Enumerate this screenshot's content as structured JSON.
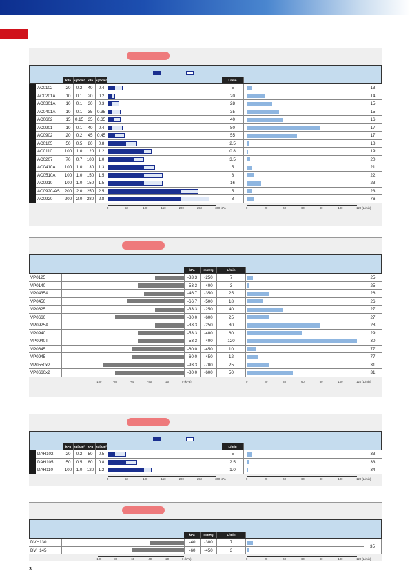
{
  "sections": [
    {
      "id": "ac",
      "headers": [
        "kPa",
        "kgf/cm²",
        "kPa",
        "kgf/cm²",
        "L/min"
      ],
      "pressure_axis": [
        "0",
        "50",
        "100",
        "150",
        "200",
        "250",
        "300 kPa"
      ],
      "flow_axis": [
        "0",
        "20",
        "40",
        "60",
        "80",
        "100",
        "120 (L/min)"
      ],
      "rows": [
        {
          "name": "AC0102",
          "p1": "20",
          "k1": "0.2",
          "p2": "40",
          "k2": "0.4",
          "pv1": 20,
          "pv2": 40,
          "flow": "5",
          "fv": 5,
          "page": "13"
        },
        {
          "name": "AC0201A",
          "p1": "10",
          "k1": "0.1",
          "p2": "20",
          "k2": "0.2",
          "pv1": 10,
          "pv2": 20,
          "flow": "20",
          "fv": 20,
          "page": "14"
        },
        {
          "name": "AC0301A",
          "p1": "10",
          "k1": "0.1",
          "p2": "30",
          "k2": "0.3",
          "pv1": 10,
          "pv2": 30,
          "flow": "28",
          "fv": 28,
          "page": "15"
        },
        {
          "name": "AC0401A",
          "p1": "10",
          "k1": "0.1",
          "p2": "35",
          "k2": "0.35",
          "pv1": 10,
          "pv2": 35,
          "flow": "35",
          "fv": 35,
          "page": "15"
        },
        {
          "name": "AC0602",
          "p1": "15",
          "k1": "0.15",
          "p2": "35",
          "k2": "0.35",
          "pv1": 15,
          "pv2": 35,
          "flow": "40",
          "fv": 40,
          "page": "16"
        },
        {
          "name": "AC0901",
          "p1": "10",
          "k1": "0.1",
          "p2": "40",
          "k2": "0.4",
          "pv1": 10,
          "pv2": 40,
          "flow": "80",
          "fv": 80,
          "page": "17"
        },
        {
          "name": "AC0902",
          "p1": "20",
          "k1": "0.2",
          "p2": "45",
          "k2": "0.45",
          "pv1": 20,
          "pv2": 45,
          "flow": "55",
          "fv": 55,
          "page": "17"
        },
        {
          "name": "AC0105",
          "p1": "50",
          "k1": "0.5",
          "p2": "80",
          "k2": "0.8",
          "pv1": 50,
          "pv2": 80,
          "flow": "2.5",
          "fv": 2.5,
          "page": "18"
        },
        {
          "name": "AC0110",
          "p1": "100",
          "k1": "1.0",
          "p2": "120",
          "k2": "1.2",
          "pv1": 100,
          "pv2": 120,
          "flow": "0.8",
          "fv": 0.8,
          "page": "19"
        },
        {
          "name": "AC0207",
          "p1": "70",
          "k1": "0.7",
          "p2": "100",
          "k2": "1.0",
          "pv1": 70,
          "pv2": 100,
          "flow": "3.5",
          "fv": 3.5,
          "page": "20"
        },
        {
          "name": "AC0410A",
          "p1": "100",
          "k1": "1.0",
          "p2": "130",
          "k2": "1.3",
          "pv1": 100,
          "pv2": 130,
          "flow": "5",
          "fv": 5,
          "page": "21"
        },
        {
          "name": "AC0510A",
          "p1": "100",
          "k1": "1.0",
          "p2": "150",
          "k2": "1.5",
          "pv1": 100,
          "pv2": 150,
          "flow": "8",
          "fv": 8,
          "page": "22"
        },
        {
          "name": "AC0910",
          "p1": "100",
          "k1": "1.0",
          "p2": "150",
          "k2": "1.5",
          "pv1": 100,
          "pv2": 150,
          "flow": "16",
          "fv": 16,
          "page": "23"
        },
        {
          "name": "AC0920-AS",
          "p1": "200",
          "k1": "2.0",
          "p2": "250",
          "k2": "2.5",
          "pv1": 200,
          "pv2": 250,
          "flow": "5",
          "fv": 5,
          "page": "23"
        },
        {
          "name": "AC0920",
          "p1": "200",
          "k1": "2.0",
          "p2": "280",
          "k2": "2.8",
          "pv1": 200,
          "pv2": 280,
          "flow": "8",
          "fv": 8,
          "page": "76"
        }
      ]
    },
    {
      "id": "vp",
      "headers": [
        "kPa",
        "mmHg",
        "L/min"
      ],
      "vac_axis": [
        "-100",
        "-80",
        "-60",
        "-40",
        "-20",
        "0 (kPa)"
      ],
      "flow_axis": [
        "0",
        "20",
        "40",
        "60",
        "80",
        "100",
        "120 (L/min)"
      ],
      "rows": [
        {
          "name": "VP0125",
          "kpa": "-33.3",
          "mmhg": "-250",
          "vv": 33.3,
          "flow": "7",
          "fv": 7,
          "page": "25"
        },
        {
          "name": "VP0140",
          "kpa": "-53.3",
          "mmhg": "-400",
          "vv": 53.3,
          "flow": "3",
          "fv": 3,
          "page": "25"
        },
        {
          "name": "VP0435A",
          "kpa": "-46.7",
          "mmhg": "-350",
          "vv": 46.7,
          "flow": "25",
          "fv": 25,
          "page": "26"
        },
        {
          "name": "VP0450",
          "kpa": "-66.7",
          "mmhg": "-500",
          "vv": 66.7,
          "flow": "18",
          "fv": 18,
          "page": "26"
        },
        {
          "name": "VP0625",
          "kpa": "-33.3",
          "mmhg": "-250",
          "vv": 33.3,
          "flow": "40",
          "fv": 40,
          "page": "27"
        },
        {
          "name": "VP0660",
          "kpa": "-80.0",
          "mmhg": "-600",
          "vv": 80,
          "flow": "25",
          "fv": 25,
          "page": "27"
        },
        {
          "name": "VP0925A",
          "kpa": "-33.3",
          "mmhg": "-250",
          "vv": 33.3,
          "flow": "80",
          "fv": 80,
          "page": "28"
        },
        {
          "name": "VP0940",
          "kpa": "-53.3",
          "mmhg": "-400",
          "vv": 53.3,
          "flow": "60",
          "fv": 60,
          "page": "29"
        },
        {
          "name": "VP0940T",
          "kpa": "-53.3",
          "mmhg": "-400",
          "vv": 53.3,
          "flow": "120",
          "fv": 120,
          "page": "30"
        },
        {
          "name": "VP0645",
          "kpa": "-60.0",
          "mmhg": "-450",
          "vv": 60,
          "flow": "10",
          "fv": 10,
          "page": "77"
        },
        {
          "name": "VP0945",
          "kpa": "-60.0",
          "mmhg": "-450",
          "vv": 60,
          "flow": "12",
          "fv": 12,
          "page": "77"
        },
        {
          "name": "VP0550x2",
          "kpa": "-93.3",
          "mmhg": "-700",
          "vv": 93.3,
          "flow": "25",
          "fv": 25,
          "page": "31"
        },
        {
          "name": "VP0660x2",
          "kpa": "-80.0",
          "mmhg": "-600",
          "vv": 80,
          "flow": "50",
          "fv": 50,
          "page": "31"
        }
      ]
    },
    {
      "id": "dah",
      "headers": [
        "kPa",
        "kgf/cm²",
        "kPa",
        "kgf/cm²",
        "L/min"
      ],
      "pressure_axis": [
        "0",
        "50",
        "100",
        "150",
        "200",
        "250",
        "300 kPa"
      ],
      "flow_axis": [
        "0",
        "20",
        "40",
        "60",
        "80",
        "100",
        "120 (L/min)"
      ],
      "rows": [
        {
          "name": "DAH102",
          "p1": "20",
          "k1": "0.2",
          "p2": "50",
          "k2": "0.5",
          "pv1": 20,
          "pv2": 50,
          "flow": "5",
          "fv": 5,
          "page": "33"
        },
        {
          "name": "DAH105",
          "p1": "50",
          "k1": "0.5",
          "p2": "80",
          "k2": "0.8",
          "pv1": 50,
          "pv2": 80,
          "flow": "2.5",
          "fv": 2.5,
          "page": "33"
        },
        {
          "name": "DAH110",
          "p1": "100",
          "k1": "1.0",
          "p2": "120",
          "k2": "1.2",
          "pv1": 100,
          "pv2": 120,
          "flow": "1.0",
          "fv": 1.0,
          "page": "34"
        }
      ]
    },
    {
      "id": "dvh",
      "headers": [
        "kPa",
        "mmHg",
        "L/min"
      ],
      "vac_axis": [
        "-100",
        "-80",
        "-60",
        "-40",
        "-20",
        "0 (kPa)"
      ],
      "flow_axis": [
        "0",
        "20",
        "40",
        "60",
        "80",
        "100",
        "120 (L/min)"
      ],
      "shared_page": "35",
      "rows": [
        {
          "name": "DVH130",
          "kpa": "-40",
          "mmhg": "-300",
          "vv": 40,
          "flow": "7",
          "fv": 7
        },
        {
          "name": "DVH145",
          "kpa": "-60",
          "mmhg": "-450",
          "vv": 60,
          "flow": "3",
          "fv": 3
        }
      ]
    }
  ],
  "page_number": "3",
  "colors": {
    "pressure_fill": "#1a2f8f",
    "flow_bar": "#8fb6e0",
    "vacuum_bar": "#7a7a7a",
    "header_bg": "#c5dcee",
    "pill": "#ee7a7c"
  }
}
